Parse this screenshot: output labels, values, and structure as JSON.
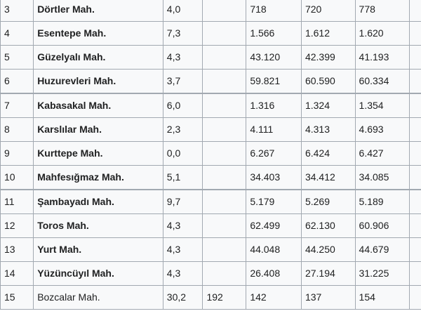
{
  "table": {
    "rows": [
      {
        "no": "3",
        "name": "Dörtler Mah.",
        "bold": true,
        "area": "4,0",
        "extra": "",
        "y1": "718",
        "y2": "720",
        "y3": "778"
      },
      {
        "no": "4",
        "name": "Esentepe Mah.",
        "bold": true,
        "area": "7,3",
        "extra": "",
        "y1": "1.566",
        "y2": "1.612",
        "y3": "1.620"
      },
      {
        "no": "5",
        "name": "Güzelyalı Mah.",
        "bold": true,
        "area": "4,3",
        "extra": "",
        "y1": "43.120",
        "y2": "42.399",
        "y3": "41.193"
      },
      {
        "no": "6",
        "name": "Huzurevleri Mah.",
        "bold": true,
        "area": "3,7",
        "extra": "",
        "y1": "59.821",
        "y2": "60.590",
        "y3": "60.334"
      },
      {
        "no": "7",
        "name": "Kabasakal Mah.",
        "bold": true,
        "area": "6,0",
        "extra": "",
        "y1": "1.316",
        "y2": "1.324",
        "y3": "1.354"
      },
      {
        "no": "8",
        "name": "Karslılar Mah.",
        "bold": true,
        "area": "2,3",
        "extra": "",
        "y1": "4.111",
        "y2": "4.313",
        "y3": "4.693"
      },
      {
        "no": "9",
        "name": "Kurttepe Mah.",
        "bold": true,
        "area": "0,0",
        "extra": "",
        "y1": "6.267",
        "y2": "6.424",
        "y3": "6.427"
      },
      {
        "no": "10",
        "name": "Mahfesığmaz Mah.",
        "bold": true,
        "area": "5,1",
        "extra": "",
        "y1": "34.403",
        "y2": "34.412",
        "y3": "34.085"
      },
      {
        "no": "11",
        "name": "Şambayadı Mah.",
        "bold": true,
        "area": "9,7",
        "extra": "",
        "y1": "5.179",
        "y2": "5.269",
        "y3": "5.189"
      },
      {
        "no": "12",
        "name": "Toros Mah.",
        "bold": true,
        "area": "4,3",
        "extra": "",
        "y1": "62.499",
        "y2": "62.130",
        "y3": "60.906"
      },
      {
        "no": "13",
        "name": "Yurt Mah.",
        "bold": true,
        "area": "4,3",
        "extra": "",
        "y1": "44.048",
        "y2": "44.250",
        "y3": "44.679"
      },
      {
        "no": "14",
        "name": "Yüzüncüyıl Mah.",
        "bold": true,
        "area": "4,3",
        "extra": "",
        "y1": "26.408",
        "y2": "27.194",
        "y3": "31.225"
      },
      {
        "no": "15",
        "name": "Bozcalar Mah.",
        "bold": false,
        "area": "30,2",
        "extra": "192",
        "y1": "142",
        "y2": "137",
        "y3": "154"
      }
    ]
  }
}
